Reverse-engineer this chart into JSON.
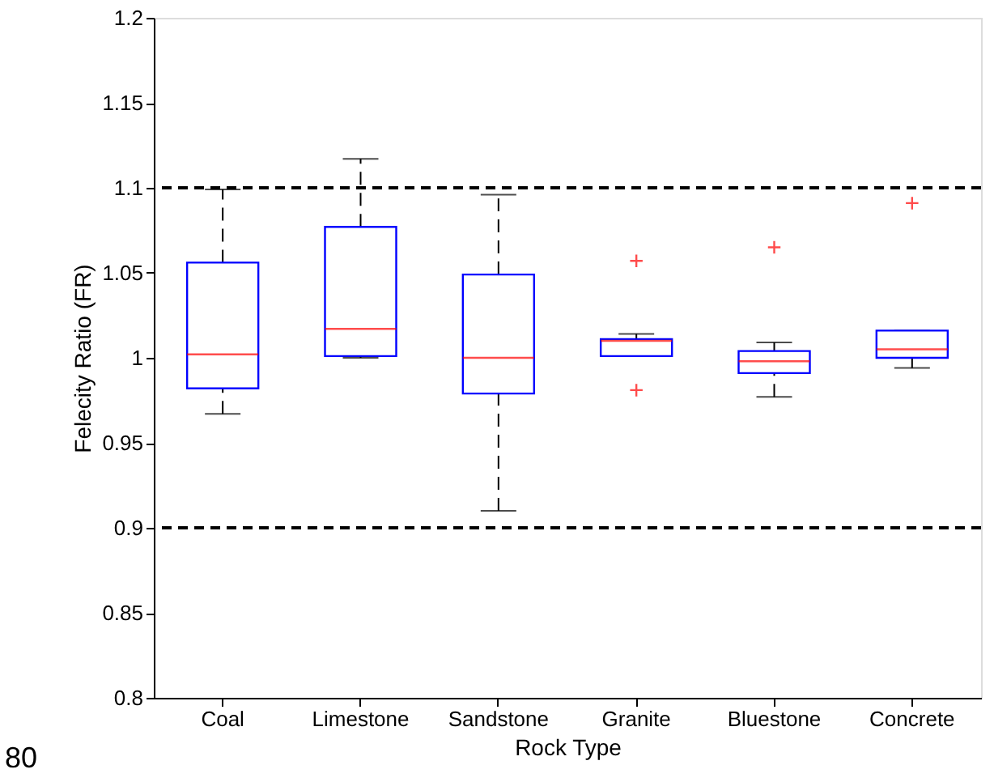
{
  "chart_data": {
    "type": "box",
    "xlabel": "Rock Type",
    "ylabel": "Felecity Ratio (FR)",
    "categories": [
      "Coal",
      "Limestone",
      "Sandstone",
      "Granite",
      "Bluestone",
      "Concrete"
    ],
    "boxes": [
      {
        "low": 0.967,
        "q1": 0.982,
        "median": 1.002,
        "q3": 1.056,
        "high": 1.099
      },
      {
        "low": 1.0,
        "q1": 1.001,
        "median": 1.017,
        "q3": 1.077,
        "high": 1.117
      },
      {
        "low": 0.91,
        "q1": 0.979,
        "median": 1.0,
        "q3": 1.049,
        "high": 1.096
      },
      {
        "low": 1.001,
        "q1": 1.001,
        "median": 1.01,
        "q3": 1.011,
        "high": 1.014,
        "outliers": [
          1.057,
          0.981
        ]
      },
      {
        "low": 0.977,
        "q1": 0.991,
        "median": 0.998,
        "q3": 1.004,
        "high": 1.009,
        "outliers": [
          1.065
        ]
      },
      {
        "low": 0.994,
        "q1": 1.0,
        "median": 1.005,
        "q3": 1.016,
        "high": 1.016,
        "outliers": [
          1.091
        ]
      }
    ],
    "color": "#0000ff",
    "ylim": [
      0.8,
      1.2
    ],
    "yticks": [
      0.8,
      0.85,
      0.9,
      0.95,
      1,
      1.05,
      1.1,
      1.15,
      1.2
    ],
    "ref_lines": [
      {
        "axis": "y",
        "value": 1.1,
        "color": "#000000",
        "line_style": "dashed"
      },
      {
        "axis": "y",
        "value": 0.9,
        "color": "#000000",
        "line_style": "dashed"
      }
    ],
    "annotations": [
      "80"
    ],
    "grid": false
  }
}
